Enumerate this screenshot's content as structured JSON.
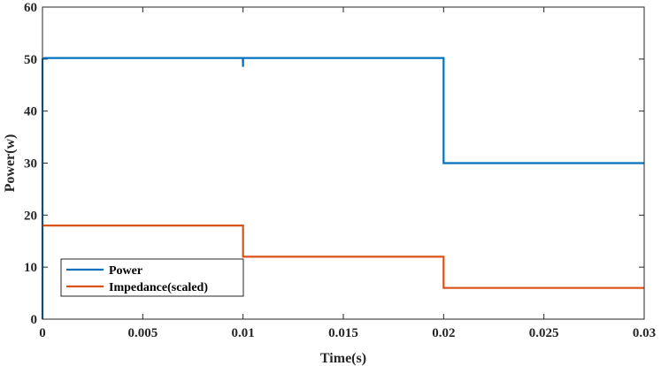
{
  "chart_data": {
    "type": "line",
    "title": "",
    "xlabel": "Time(s)",
    "ylabel": "Power(w)",
    "xlim": [
      0,
      0.03
    ],
    "ylim": [
      0,
      60
    ],
    "x_ticks": [
      0,
      0.005,
      0.01,
      0.015,
      0.02,
      0.025,
      0.03
    ],
    "x_tick_labels": [
      "0",
      "0.005",
      "0.01",
      "0.015",
      "0.02",
      "0.025",
      "0.03"
    ],
    "y_ticks": [
      0,
      10,
      20,
      30,
      40,
      50,
      60
    ],
    "y_tick_labels": [
      "0",
      "10",
      "20",
      "30",
      "40",
      "50",
      "60"
    ],
    "grid": false,
    "legend_position": "bottom-left",
    "series": [
      {
        "name": "Power",
        "color": "#0072BD",
        "x": [
          0,
          0,
          0.0001,
          0.00999,
          0.01,
          0.01,
          0.01001,
          0.02,
          0.02,
          0.03
        ],
        "y": [
          0,
          50,
          50.2,
          50.2,
          48.5,
          50.2,
          50.2,
          50.2,
          30,
          30
        ]
      },
      {
        "name": "Impedance(scaled)",
        "color": "#D95319",
        "x": [
          0,
          0.01,
          0.01,
          0.02,
          0.02,
          0.03
        ],
        "y": [
          18,
          18,
          12,
          12,
          6,
          6
        ]
      }
    ]
  }
}
